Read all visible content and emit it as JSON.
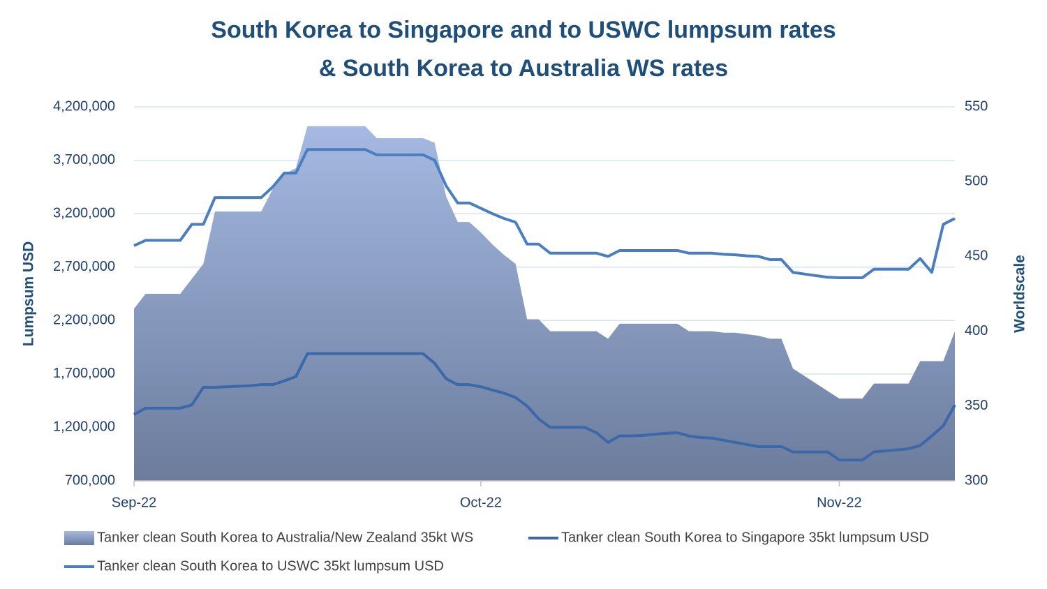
{
  "chart_data": {
    "type": "combo",
    "title": [
      "South Korea to Singapore and to USWC lumpsum rates",
      "& South Korea to Australia WS rates"
    ],
    "y_label": "Lumpsum USD",
    "y2_label": "Worldscale",
    "categories": [
      "Sep-22",
      null,
      null,
      null,
      null,
      null,
      null,
      null,
      null,
      null,
      null,
      null,
      null,
      null,
      null,
      null,
      null,
      null,
      null,
      null,
      null,
      null,
      null,
      null,
      null,
      null,
      null,
      null,
      null,
      null,
      "Oct-22",
      null,
      null,
      null,
      null,
      null,
      null,
      null,
      null,
      null,
      null,
      null,
      null,
      null,
      null,
      null,
      null,
      null,
      null,
      null,
      null,
      null,
      null,
      null,
      null,
      null,
      null,
      null,
      null,
      null,
      null,
      "Nov-22",
      null,
      null,
      null,
      null,
      null,
      null,
      null,
      null,
      null,
      null
    ],
    "ylim": [
      700000,
      4200000
    ],
    "yticks": [
      {
        "value": 700000,
        "label": "700,000"
      },
      {
        "value": 1200000,
        "label": "1,200,000"
      },
      {
        "value": 1700000,
        "label": "1,700,000"
      },
      {
        "value": 2200000,
        "label": "2,200,000"
      },
      {
        "value": 2700000,
        "label": "2,700,000"
      },
      {
        "value": 3200000,
        "label": "3,200,000"
      },
      {
        "value": 3700000,
        "label": "3,700,000"
      },
      {
        "value": 4200000,
        "label": "4,200,000"
      }
    ],
    "y2lim": [
      300,
      550
    ],
    "y2ticks": [
      300,
      350,
      400,
      450,
      500,
      550
    ],
    "grid": true,
    "legend": "bottom",
    "series": [
      {
        "name": "Tanker clean South Korea to Australia/New Zealand 35kt WS",
        "type": "area",
        "axis": "y2",
        "color": [
          "#a5b9e2",
          "#6b7c9c"
        ],
        "values": [
          415,
          425,
          425,
          425,
          425,
          435,
          445,
          480,
          480,
          480,
          480,
          480,
          495,
          505,
          509,
          537,
          537,
          537,
          537,
          537,
          537,
          529,
          529,
          529,
          529,
          529,
          526,
          490,
          473,
          473,
          466,
          458,
          451,
          445,
          408,
          408,
          400,
          400,
          400,
          400,
          400,
          395,
          405,
          405,
          405,
          405,
          405,
          405,
          400,
          400,
          400,
          399,
          399,
          398,
          397,
          395,
          395,
          375,
          370,
          365,
          360,
          355,
          355,
          355,
          365,
          365,
          365,
          365,
          380,
          380,
          380,
          400
        ]
      },
      {
        "name": "Tanker clean South Korea to Singapore 35kt lumpsum USD",
        "type": "line",
        "color": "#3a68a8",
        "values": [
          1320000,
          1380000,
          1380000,
          1380000,
          1380000,
          1410000,
          1575000,
          1575000,
          1580000,
          1585000,
          1590000,
          1600000,
          1600000,
          1635000,
          1675000,
          1890000,
          1890000,
          1890000,
          1890000,
          1890000,
          1890000,
          1890000,
          1890000,
          1890000,
          1890000,
          1890000,
          1800000,
          1655000,
          1600000,
          1600000,
          1580000,
          1550000,
          1520000,
          1480000,
          1400000,
          1280000,
          1200000,
          1200000,
          1200000,
          1200000,
          1150000,
          1060000,
          1120000,
          1120000,
          1125000,
          1135000,
          1145000,
          1150000,
          1120000,
          1105000,
          1100000,
          1080000,
          1060000,
          1040000,
          1020000,
          1020000,
          1020000,
          970000,
          970000,
          970000,
          970000,
          895000,
          895000,
          895000,
          970000,
          980000,
          990000,
          1000000,
          1030000,
          1120000,
          1215000,
          1410000
        ]
      },
      {
        "name": "Tanker clean South Korea to USWC 35kt lumpsum USD",
        "type": "line",
        "color": "#4a7ec0",
        "values": [
          2900000,
          2950000,
          2950000,
          2950000,
          2950000,
          3100000,
          3100000,
          3350000,
          3350000,
          3350000,
          3350000,
          3350000,
          3450000,
          3580000,
          3580000,
          3800000,
          3800000,
          3800000,
          3800000,
          3800000,
          3800000,
          3750000,
          3750000,
          3750000,
          3750000,
          3750000,
          3700000,
          3460000,
          3300000,
          3300000,
          3250000,
          3200000,
          3155000,
          3120000,
          2915000,
          2915000,
          2830000,
          2830000,
          2830000,
          2830000,
          2830000,
          2800000,
          2855000,
          2855000,
          2855000,
          2855000,
          2855000,
          2855000,
          2830000,
          2830000,
          2830000,
          2820000,
          2815000,
          2805000,
          2800000,
          2770000,
          2770000,
          2650000,
          2635000,
          2620000,
          2605000,
          2600000,
          2600000,
          2600000,
          2680000,
          2680000,
          2680000,
          2680000,
          2780000,
          2650000,
          3100000,
          3155000
        ]
      }
    ]
  }
}
